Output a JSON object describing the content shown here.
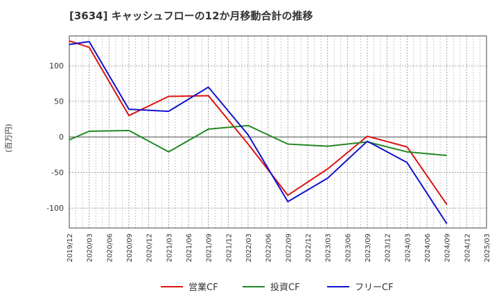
{
  "chart_data": {
    "type": "line",
    "title": "[3634]  キャッシュフローの12か月移動合計の推移",
    "ylabel": "(百万円)",
    "xlabel": "",
    "ylim": [
      -128,
      142
    ],
    "yticks": [
      100,
      50,
      0,
      -50,
      -100
    ],
    "ytick_labels": [
      "100",
      "50",
      "0",
      "-50",
      "-100"
    ],
    "x_tick_labels": [
      "2019/12",
      "2020/03",
      "2020/06",
      "2020/09",
      "2020/12",
      "2021/03",
      "2021/06",
      "2021/09",
      "2021/12",
      "2022/03",
      "2022/06",
      "2022/09",
      "2022/12",
      "2023/03",
      "2023/06",
      "2023/09",
      "2023/12",
      "2024/03",
      "2024/06",
      "2024/09",
      "2024/12",
      "2025/03"
    ],
    "grid": true,
    "legend_position": "bottom",
    "series": [
      {
        "name": "営業CF",
        "color": "#dd1111",
        "points": [
          [
            0,
            135
          ],
          [
            1,
            126
          ],
          [
            3,
            30
          ],
          [
            5,
            57
          ],
          [
            7,
            58
          ],
          [
            9,
            -10
          ],
          [
            11,
            -82
          ],
          [
            13,
            -45
          ],
          [
            15,
            1
          ],
          [
            17,
            -14
          ],
          [
            19,
            -95
          ]
        ]
      },
      {
        "name": "投資CF",
        "color": "#228822",
        "points": [
          [
            0,
            -4
          ],
          [
            1,
            8
          ],
          [
            3,
            9
          ],
          [
            5,
            -21
          ],
          [
            7,
            11
          ],
          [
            9,
            16
          ],
          [
            11,
            -10
          ],
          [
            13,
            -13
          ],
          [
            15,
            -7
          ],
          [
            17,
            -21
          ],
          [
            19,
            -26
          ]
        ]
      },
      {
        "name": "フリーCF",
        "color": "#1111cc",
        "points": [
          [
            0,
            130
          ],
          [
            1,
            134
          ],
          [
            3,
            39
          ],
          [
            5,
            36
          ],
          [
            7,
            70
          ],
          [
            9,
            3
          ],
          [
            11,
            -91
          ],
          [
            13,
            -58
          ],
          [
            15,
            -6
          ],
          [
            17,
            -36
          ],
          [
            19,
            -122
          ]
        ]
      }
    ]
  }
}
